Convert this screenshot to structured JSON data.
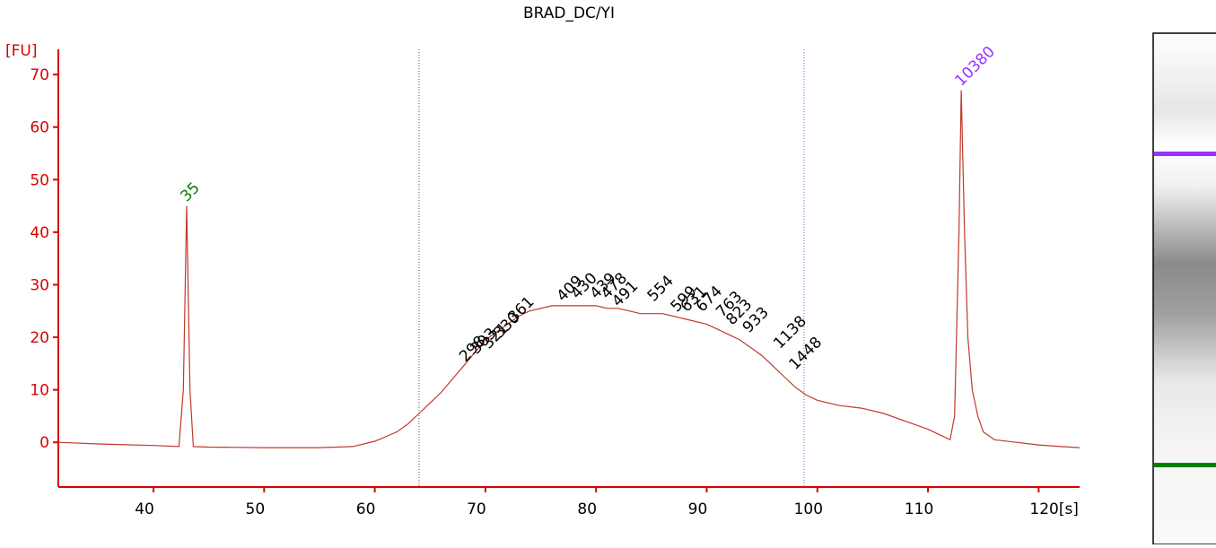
{
  "chart_data": {
    "type": "line",
    "title": "BRAD_DC/YI",
    "y_label": "[FU]",
    "color": "#c0392b",
    "axis_color": "#dd0000",
    "xlim": [
      31.4,
      123.7
    ],
    "ylim": [
      -8.5,
      74.8
    ],
    "xticks": [
      40,
      50,
      60,
      70,
      80,
      90,
      100,
      110,
      {
        "value": 120,
        "label": "120[s]"
      }
    ],
    "yticks": [
      0,
      10,
      20,
      30,
      40,
      50,
      60,
      70
    ],
    "region": [
      64,
      98.8
    ],
    "x": [
      31.4,
      35,
      40,
      42.3,
      42.7,
      43,
      43.3,
      43.6,
      45,
      50,
      55,
      58,
      60,
      62,
      63,
      64,
      65,
      66,
      67,
      68,
      69,
      70,
      71,
      72,
      73,
      74,
      75,
      76,
      77,
      78,
      79,
      80,
      81,
      82,
      83,
      84,
      85,
      86,
      87,
      88,
      89,
      90,
      91,
      92,
      93,
      94,
      95,
      96,
      97,
      98,
      99,
      100,
      102,
      104,
      106,
      108,
      110,
      111,
      112,
      112.4,
      112.8,
      113,
      113.3,
      113.6,
      114,
      114.5,
      115,
      116,
      118,
      120,
      122,
      123.7
    ],
    "values": [
      0,
      -0.3,
      -0.6,
      -0.8,
      10,
      45,
      10,
      -0.8,
      -0.9,
      -1,
      -1,
      -0.8,
      0.2,
      2,
      3.5,
      5.5,
      7.5,
      9.5,
      12,
      14.5,
      17,
      19.5,
      21,
      22.5,
      24,
      25,
      25.5,
      26,
      26,
      26,
      26,
      26,
      25.5,
      25.5,
      25,
      24.5,
      24.5,
      24.5,
      24,
      23.5,
      23,
      22.5,
      21.5,
      20.5,
      19.5,
      18,
      16.5,
      14.5,
      12.5,
      10.5,
      9,
      8,
      7,
      6.5,
      5.5,
      4,
      2.5,
      1.5,
      0.5,
      5,
      40,
      67,
      40,
      20,
      10,
      5,
      2,
      0.5,
      0,
      -0.5,
      -0.8,
      -1
    ],
    "peaks": [
      {
        "time": 43,
        "height": 45,
        "size": 35,
        "color": "#008000"
      },
      {
        "time": 68.2,
        "height": 14.5,
        "size": 298,
        "color": "#000000"
      },
      {
        "time": 69.2,
        "height": 16,
        "size": 303,
        "color": "#000000"
      },
      {
        "time": 70.3,
        "height": 17,
        "size": 321,
        "color": "#000000"
      },
      {
        "time": 71.3,
        "height": 19,
        "size": 330,
        "color": "#000000"
      },
      {
        "time": 72.6,
        "height": 22,
        "size": 361,
        "color": "#000000"
      },
      {
        "time": 77,
        "height": 26,
        "size": 409,
        "color": "#000000"
      },
      {
        "time": 78.3,
        "height": 26.5,
        "size": 430,
        "color": "#000000"
      },
      {
        "time": 80,
        "height": 26.5,
        "size": 439,
        "color": "#000000"
      },
      {
        "time": 81,
        "height": 26.5,
        "size": 478,
        "color": "#000000"
      },
      {
        "time": 82,
        "height": 25,
        "size": 491,
        "color": "#000000"
      },
      {
        "time": 85.2,
        "height": 26,
        "size": 554,
        "color": "#000000"
      },
      {
        "time": 87.3,
        "height": 24,
        "size": 599,
        "color": "#000000"
      },
      {
        "time": 88.2,
        "height": 24,
        "size": 631,
        "color": "#000000"
      },
      {
        "time": 89.6,
        "height": 24,
        "size": 674,
        "color": "#000000"
      },
      {
        "time": 91.4,
        "height": 23,
        "size": 763,
        "color": "#000000"
      },
      {
        "time": 92.3,
        "height": 21.5,
        "size": 823,
        "color": "#000000"
      },
      {
        "time": 93.8,
        "height": 20,
        "size": 933,
        "color": "#000000"
      },
      {
        "time": 96.6,
        "height": 17,
        "size": 1138,
        "color": "#000000"
      },
      {
        "time": 98,
        "height": 13,
        "size": 1448,
        "color": "#000000"
      },
      {
        "time": 113,
        "height": 67,
        "size": 10380,
        "color": "#9933ff"
      }
    ]
  }
}
